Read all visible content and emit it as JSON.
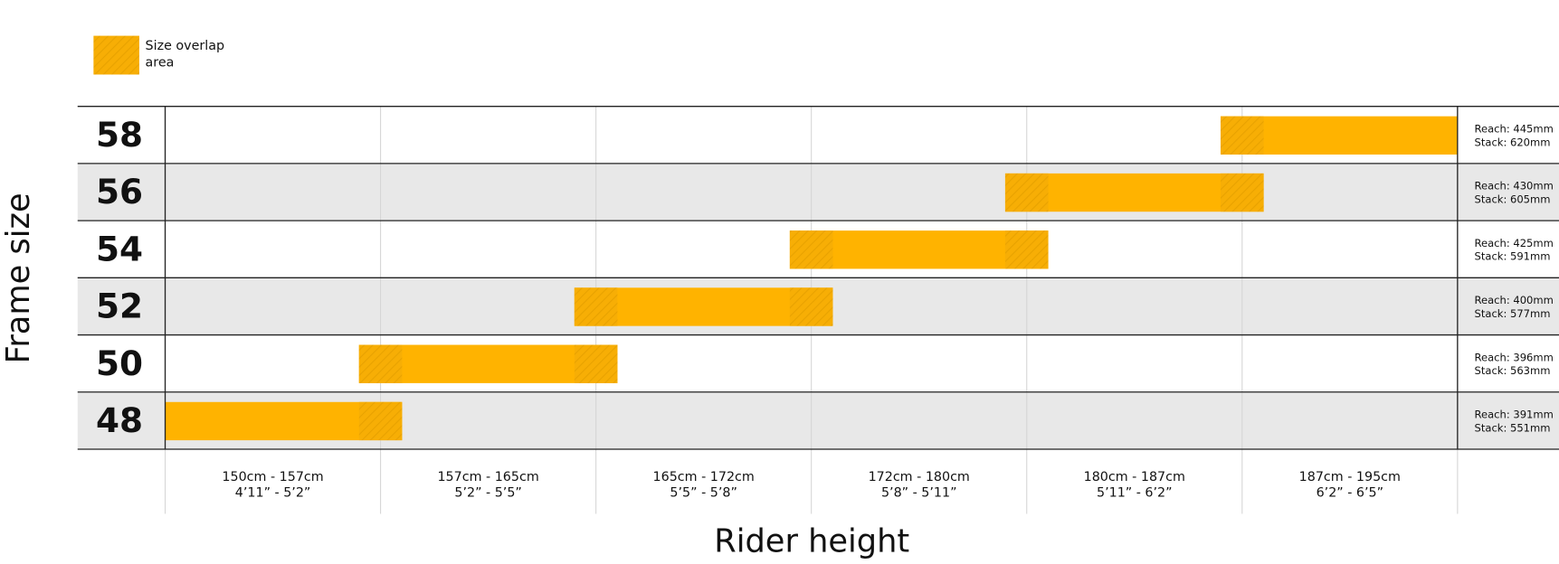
{
  "chart_data": {
    "type": "range",
    "y_label": "Frame size",
    "x_label": "Rider height",
    "legend": "Size overlap area",
    "color": "#ffb300",
    "categories": [
      "58",
      "56",
      "54",
      "52",
      "50",
      "48"
    ],
    "starts": [
      4.9,
      3.9,
      2.9,
      1.9,
      0.9,
      0
    ],
    "ends": [
      6,
      5.1,
      4.1,
      3.1,
      2.1,
      1.1
    ],
    "xlim": [
      0,
      6
    ],
    "notes": [
      [
        "Reach: 445mm",
        "Stack: 620mm"
      ],
      [
        "Reach: 430mm",
        "Stack: 605mm"
      ],
      [
        "Reach: 425mm",
        "Stack: 591mm"
      ],
      [
        "Reach: 400mm",
        "Stack: 577mm"
      ],
      [
        "Reach: 396mm",
        "Stack: 563mm"
      ],
      [
        "Reach: 391mm",
        "Stack: 551mm"
      ]
    ],
    "height_bands": [
      [
        "150cm - 157cm",
        "4’11” - 5’2”"
      ],
      [
        "157cm - 165cm",
        "5’2” - 5’5”"
      ],
      [
        "165cm - 172cm",
        "5’5” - 5’8”"
      ],
      [
        "172cm - 180cm",
        "5’8” - 5’11”"
      ],
      [
        "180cm - 187cm",
        "5’11” - 6’2”"
      ],
      [
        "187cm - 195cm",
        "6’2” - 6’5”"
      ]
    ]
  }
}
